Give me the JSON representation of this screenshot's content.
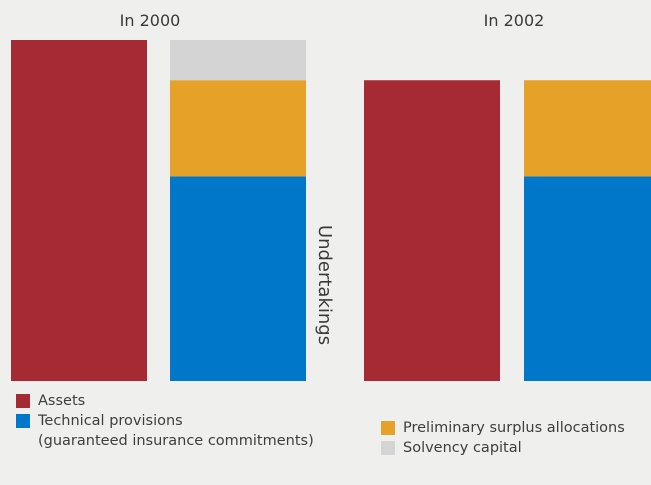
{
  "colors": {
    "background": "#efefed",
    "assets": "#a52a33",
    "technical_provisions": "#0077c8",
    "preliminary_surplus_allocations": "#e5a128",
    "solvency_capital": "#d4d4d4"
  },
  "chart_data": {
    "type": "bar",
    "stacked": true,
    "value_scale": "relative (no axis printed)",
    "categories": [
      "In 2000",
      "In 2002"
    ],
    "group_label": "Undertakings",
    "groups": [
      {
        "label": "In 2000",
        "bars": [
          {
            "name": "Assets",
            "segments": [
              {
                "series": "Assets",
                "value": 100
              }
            ]
          },
          {
            "name": "Undertakings",
            "segments": [
              {
                "series": "Technical provisions",
                "value": 60
              },
              {
                "series": "Preliminary surplus allocations",
                "value": 28.2
              },
              {
                "series": "Solvency capital",
                "value": 11.8
              }
            ]
          }
        ]
      },
      {
        "label": "In 2002",
        "bars": [
          {
            "name": "Assets",
            "segments": [
              {
                "series": "Assets",
                "value": 88.2
              }
            ]
          },
          {
            "name": "Undertakings",
            "segments": [
              {
                "series": "Technical provisions",
                "value": 60
              },
              {
                "series": "Preliminary surplus allocations",
                "value": 28.2
              }
            ]
          }
        ]
      }
    ]
  },
  "legend": {
    "assets": "Assets",
    "technical_provisions": "Technical provisions",
    "technical_provisions_sub": "(guaranteed insurance commitments)",
    "preliminary_surplus_allocations": "Preliminary surplus allocations",
    "solvency_capital": "Solvency capital"
  }
}
